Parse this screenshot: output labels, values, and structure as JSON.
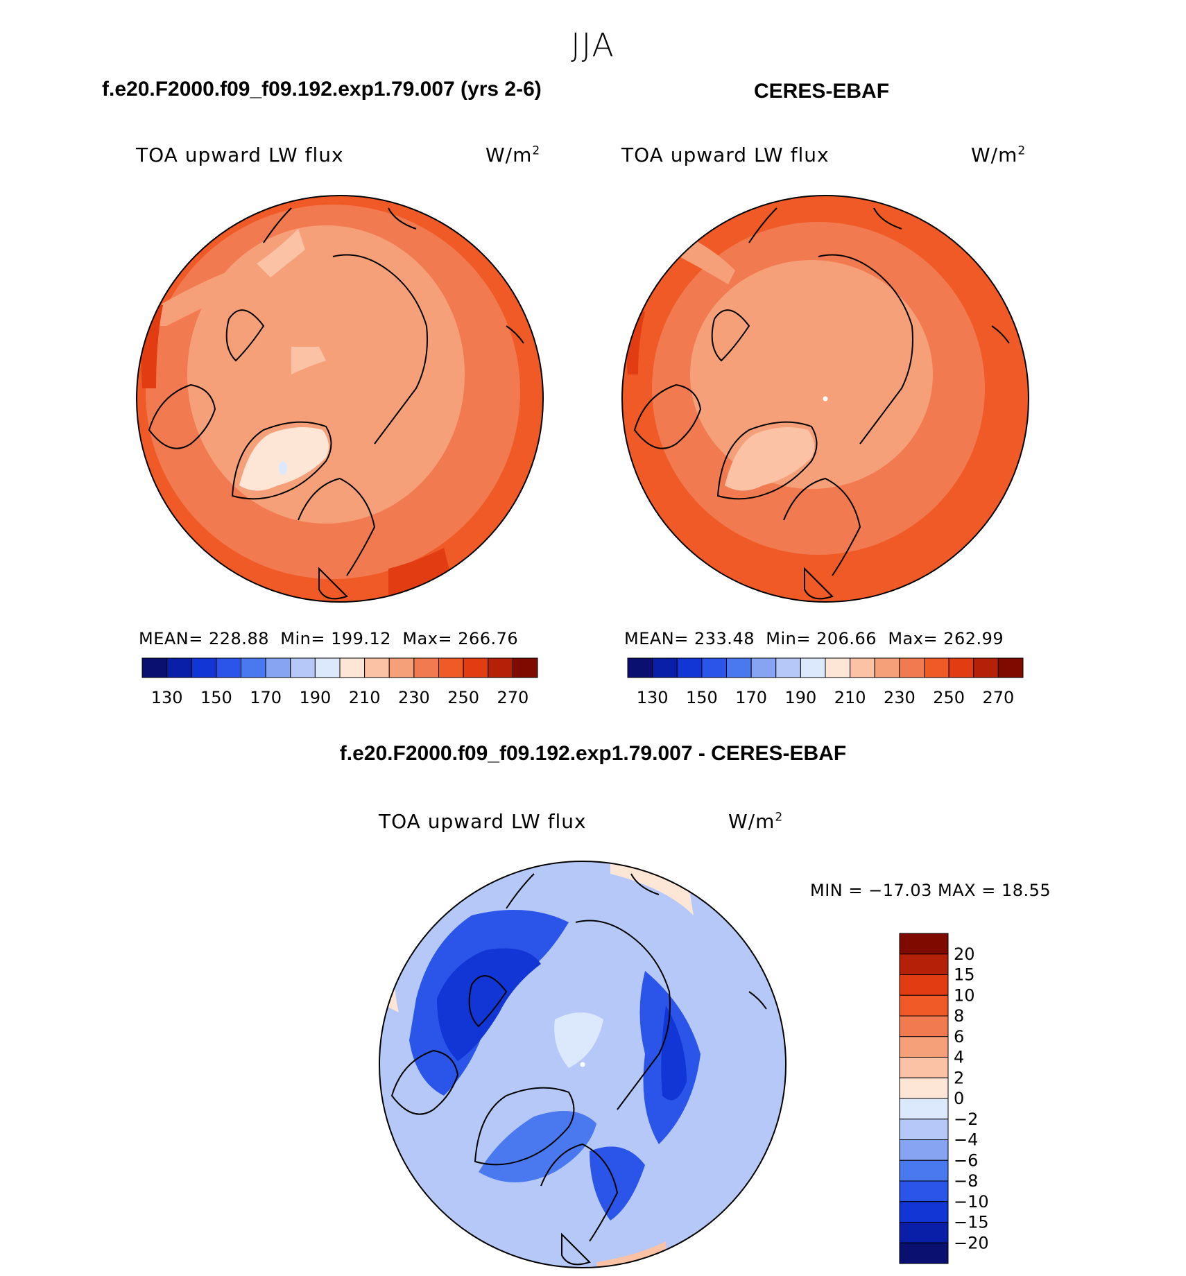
{
  "header": {
    "season": "JJA",
    "model_title": "f.e20.F2000.f09_f09.192.exp1.79.007 (yrs 2-6)",
    "obs_title": "CERES-EBAF",
    "diff_title": "f.e20.F2000.f09_f09.192.exp1.79.007 - CERES-EBAF"
  },
  "chart_data": [
    {
      "type": "polar-contour-map",
      "projection": "north polar stereographic",
      "panel": "model",
      "variable": "TOA upward LW flux",
      "units_base": "W/m",
      "units_exp": "2",
      "stats": {
        "mean_label": "MEAN=",
        "mean": "228.88",
        "min_label": "Min=",
        "min": "199.12",
        "max_label": "Max=",
        "max": "266.76"
      },
      "colorbar": {
        "levels": [
          130,
          140,
          150,
          160,
          170,
          180,
          190,
          200,
          210,
          220,
          230,
          240,
          250,
          260,
          270
        ],
        "tick_labels": [
          "130",
          "150",
          "170",
          "190",
          "210",
          "230",
          "250",
          "270"
        ],
        "colors": [
          "#0a1070",
          "#0a1fa8",
          "#1235d6",
          "#2a55e8",
          "#4a78ee",
          "#86a4f2",
          "#b5c8f7",
          "#dce8fc",
          "#fde6d6",
          "#fbc2a6",
          "#f6a07a",
          "#f27a50",
          "#ef5a26",
          "#e23d12",
          "#b52008",
          "#7e0a00"
        ]
      }
    },
    {
      "type": "polar-contour-map",
      "projection": "north polar stereographic",
      "panel": "observations",
      "variable": "TOA upward LW flux",
      "units_base": "W/m",
      "units_exp": "2",
      "stats": {
        "mean_label": "MEAN=",
        "mean": "233.48",
        "min_label": "Min=",
        "min": "206.66",
        "max_label": "Max=",
        "max": "262.99"
      },
      "colorbar": {
        "levels": [
          130,
          140,
          150,
          160,
          170,
          180,
          190,
          200,
          210,
          220,
          230,
          240,
          250,
          260,
          270
        ],
        "tick_labels": [
          "130",
          "150",
          "170",
          "190",
          "210",
          "230",
          "250",
          "270"
        ],
        "colors": [
          "#0a1070",
          "#0a1fa8",
          "#1235d6",
          "#2a55e8",
          "#4a78ee",
          "#86a4f2",
          "#b5c8f7",
          "#dce8fc",
          "#fde6d6",
          "#fbc2a6",
          "#f6a07a",
          "#f27a50",
          "#ef5a26",
          "#e23d12",
          "#b52008",
          "#7e0a00"
        ]
      }
    },
    {
      "type": "polar-contour-map",
      "projection": "north polar stereographic",
      "panel": "difference",
      "variable": "TOA upward LW flux",
      "units_base": "W/m",
      "units_exp": "2",
      "stats": {
        "label": "MIN = −17.03 MAX =   18.55",
        "min": -17.03,
        "max": 18.55
      },
      "colorbar": {
        "orientation": "vertical",
        "tick_labels": [
          "20",
          "15",
          "10",
          "8",
          "6",
          "4",
          "2",
          "0",
          "−2",
          "−4",
          "−6",
          "−8",
          "−10",
          "−15",
          "−20"
        ],
        "colors": [
          "#7e0a00",
          "#b52008",
          "#e23d12",
          "#ef5a26",
          "#f27a50",
          "#f6a07a",
          "#fbc2a6",
          "#fde6d6",
          "#dce8fc",
          "#b5c8f7",
          "#86a4f2",
          "#4a78ee",
          "#2a55e8",
          "#1235d6",
          "#0a1fa8",
          "#0a1070"
        ]
      }
    }
  ]
}
